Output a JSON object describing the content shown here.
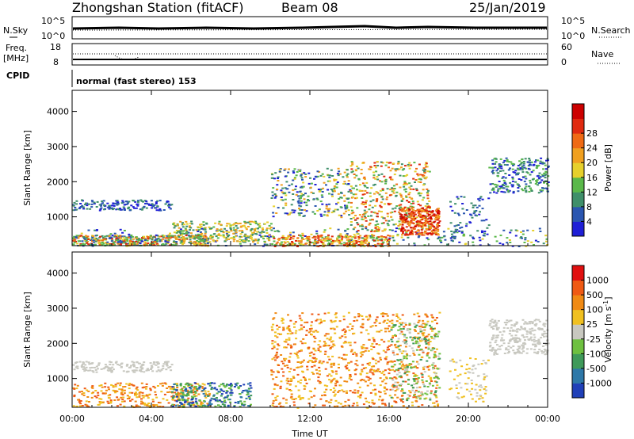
{
  "header": {
    "title": "Zhongshan Station (fitACF)",
    "beam": "Beam 08",
    "date": "25/Jan/2019"
  },
  "top_panels": {
    "nsky_label": "N.Sky",
    "nsearch_label": "N.Search",
    "freq_label_1": "Freq.",
    "freq_label_2": "[MHz]",
    "nave_label": "Nave",
    "cpid_label": "CPID",
    "cpid_text": "normal (fast stereo) 153",
    "noise_left_ticks": [
      "10^5",
      "10^0"
    ],
    "noise_right_ticks": [
      "10^5",
      "10^0"
    ],
    "freq_ticks": [
      "18",
      "8"
    ],
    "nave_ticks": [
      "60",
      "0"
    ]
  },
  "chart_data": [
    {
      "type": "heatmap",
      "title": "",
      "xlabel": "Time UT",
      "ylabel": "Slant Range [km]",
      "xlim": [
        0,
        24
      ],
      "ylim": [
        180,
        4600
      ],
      "x_ticks": [
        "00:00",
        "04:00",
        "08:00",
        "12:00",
        "16:00",
        "20:00",
        "00:00"
      ],
      "y_ticks": [
        1000,
        2000,
        3000,
        4000
      ],
      "colorbar_label": "Power [dB]",
      "colorbar_ticks": [
        "4",
        "8",
        "12",
        "16",
        "20",
        "24",
        "28"
      ],
      "colorbar_colors": [
        "#1f1fd6",
        "#2a56b0",
        "#3f8f6a",
        "#5ab84a",
        "#e6d02c",
        "#f0a020",
        "#ef6a14",
        "#e02a10",
        "#cc0000"
      ]
    },
    {
      "type": "heatmap",
      "title": "",
      "xlabel": "Time UT",
      "ylabel": "Slant Range [km]",
      "xlim": [
        0,
        24
      ],
      "ylim": [
        180,
        4600
      ],
      "x_ticks": [
        "00:00",
        "04:00",
        "08:00",
        "12:00",
        "16:00",
        "20:00",
        "00:00"
      ],
      "y_ticks": [
        1000,
        2000,
        3000,
        4000
      ],
      "colorbar_label_main": "Velocity",
      "colorbar_label_unit": "[m s",
      "colorbar_label_exp": "-1",
      "colorbar_label_close": "]",
      "colorbar_ticks": [
        "1000",
        "500",
        "100",
        "25",
        "-25",
        "-100",
        "-500",
        "-1000"
      ],
      "colorbar_colors": [
        "#2040b8",
        "#2e78a8",
        "#3f9a5a",
        "#6ec040",
        "#c8c8c0",
        "#f0c020",
        "#f08a14",
        "#ef5a14",
        "#e01010"
      ]
    }
  ]
}
